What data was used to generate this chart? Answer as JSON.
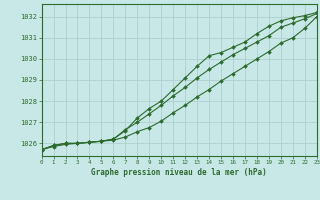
{
  "title": "Graphe pression niveau de la mer (hPa)",
  "bg_color": "#c8e8e8",
  "line_color": "#2d6a2d",
  "grid_color": "#b0d0d0",
  "x_min": 0,
  "x_max": 23,
  "y_min": 1025.4,
  "y_max": 1032.6,
  "yticks": [
    1026,
    1027,
    1028,
    1029,
    1030,
    1031,
    1032
  ],
  "xticks": [
    0,
    1,
    2,
    3,
    4,
    5,
    6,
    7,
    8,
    9,
    10,
    11,
    12,
    13,
    14,
    15,
    16,
    17,
    18,
    19,
    20,
    21,
    22,
    23
  ],
  "line1_x": [
    0,
    1,
    2,
    3,
    4,
    5,
    6,
    7,
    8,
    9,
    10,
    11,
    12,
    13,
    14,
    15,
    16,
    17,
    18,
    19,
    20,
    21,
    22,
    23
  ],
  "line1_y": [
    1025.7,
    1025.85,
    1025.95,
    1026.0,
    1026.05,
    1026.1,
    1026.2,
    1026.65,
    1027.0,
    1027.4,
    1027.8,
    1028.25,
    1028.65,
    1029.1,
    1029.5,
    1029.85,
    1030.2,
    1030.5,
    1030.8,
    1031.1,
    1031.5,
    1031.7,
    1031.9,
    1032.15
  ],
  "line2_x": [
    0,
    1,
    2,
    3,
    4,
    5,
    6,
    7,
    8,
    9,
    10,
    11,
    12,
    13,
    14,
    15,
    16,
    17,
    18,
    19,
    20,
    21,
    22,
    23
  ],
  "line2_y": [
    1025.7,
    1025.9,
    1026.0,
    1026.0,
    1026.05,
    1026.1,
    1026.15,
    1026.3,
    1026.55,
    1026.75,
    1027.05,
    1027.45,
    1027.8,
    1028.2,
    1028.55,
    1028.95,
    1029.3,
    1029.65,
    1030.0,
    1030.35,
    1030.75,
    1031.0,
    1031.45,
    1032.0
  ],
  "line3_x": [
    0,
    1,
    2,
    3,
    4,
    5,
    6,
    7,
    8,
    9,
    10,
    11,
    12,
    13,
    14,
    15,
    16,
    17,
    18,
    19,
    20,
    21,
    22,
    23
  ],
  "line3_y": [
    1025.7,
    1025.9,
    1026.0,
    1026.0,
    1026.05,
    1026.1,
    1026.2,
    1026.6,
    1027.2,
    1027.65,
    1028.0,
    1028.55,
    1029.1,
    1029.65,
    1030.15,
    1030.3,
    1030.55,
    1030.8,
    1031.2,
    1031.55,
    1031.8,
    1031.95,
    1032.05,
    1032.2
  ]
}
